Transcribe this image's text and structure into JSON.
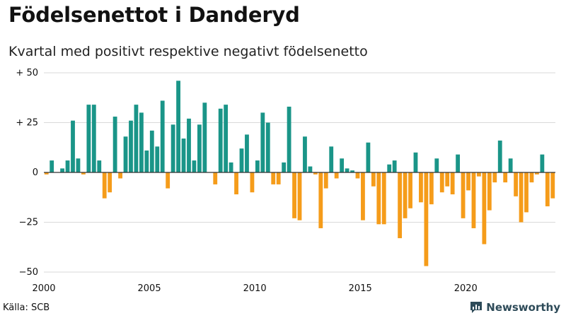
{
  "title": "Födelsenettot i Danderyd",
  "subtitle": "Kvartal med positivt respektive negativt födelsenetto",
  "source": "Källa: SCB",
  "brand": {
    "name": "Newsworthy",
    "icon": "newsworthy-logo-icon"
  },
  "colors": {
    "positive": "#1a9588",
    "negative": "#f59c1a",
    "grid": "#d9d9d9",
    "zero_line": "#333333"
  },
  "chart_data": {
    "type": "bar",
    "title": "Födelsenettot i Danderyd",
    "subtitle": "Kvartal med positivt respektive negativt födelsenetto",
    "xlabel": "",
    "ylabel": "",
    "ylim": [
      -50,
      50
    ],
    "yticks": [
      {
        "value": 50,
        "label": "+ 50"
      },
      {
        "value": 25,
        "label": "+ 25"
      },
      {
        "value": 0,
        "label": "0"
      },
      {
        "value": -25,
        "label": "−25"
      },
      {
        "value": -50,
        "label": "−50"
      }
    ],
    "xticks": [
      {
        "year": 2000,
        "label": "2000"
      },
      {
        "year": 2005,
        "label": "2005"
      },
      {
        "year": 2010,
        "label": "2010"
      },
      {
        "year": 2015,
        "label": "2015"
      },
      {
        "year": 2020,
        "label": "2020"
      }
    ],
    "start_year": 2000,
    "start_quarter": 1,
    "period": "quarter",
    "values": [
      -1,
      6,
      0,
      2,
      6,
      26,
      7,
      -1,
      34,
      34,
      6,
      -13,
      -10,
      28,
      -3,
      18,
      26,
      34,
      30,
      11,
      21,
      13,
      36,
      -8,
      24,
      46,
      17,
      27,
      6,
      24,
      35,
      0,
      -6,
      32,
      34,
      5,
      -11,
      12,
      19,
      -10,
      6,
      30,
      25,
      -6,
      -6,
      5,
      33,
      -23,
      -24,
      18,
      3,
      -1,
      -28,
      -8,
      13,
      -3,
      7,
      2,
      1,
      -3,
      -24,
      15,
      -7,
      -26,
      -26,
      4,
      6,
      -33,
      -23,
      -18,
      10,
      -15,
      -47,
      -16,
      7,
      -10,
      -7,
      -11,
      9,
      -23,
      -9,
      -28,
      -2,
      -36,
      -19,
      -5,
      16,
      -5,
      7,
      -12,
      -25,
      -20,
      -5,
      -1,
      9,
      -17,
      -13
    ]
  }
}
